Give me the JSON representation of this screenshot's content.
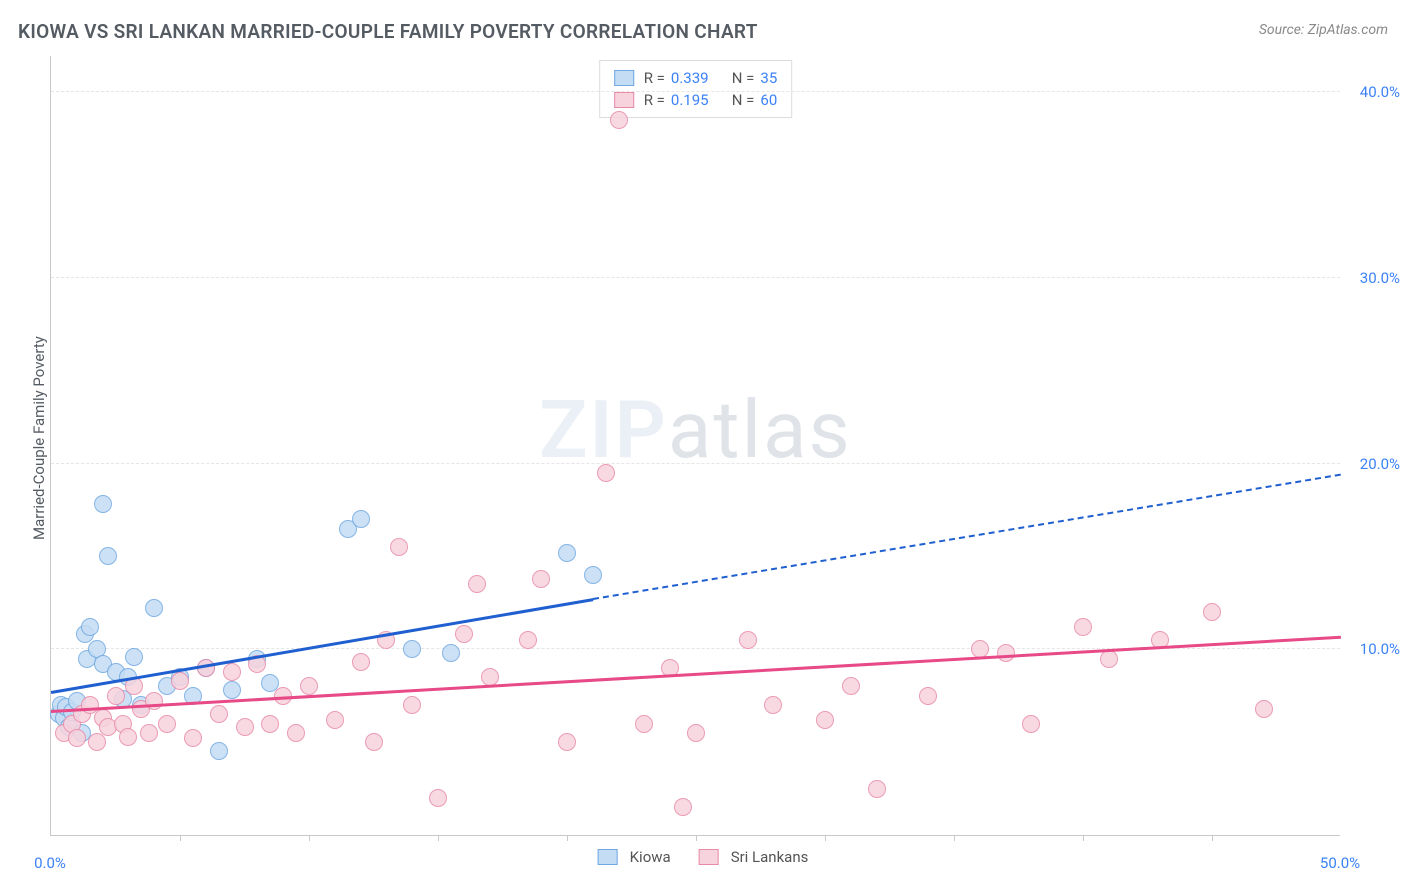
{
  "title": "KIOWA VS SRI LANKAN MARRIED-COUPLE FAMILY POVERTY CORRELATION CHART",
  "source": "Source: ZipAtlas.com",
  "watermark_bold": "ZIP",
  "watermark_thin": "atlas",
  "y_axis_label": "Married-Couple Family Poverty",
  "chart": {
    "type": "scatter",
    "background_color": "#ffffff",
    "grid_color": "#e5e5e5",
    "axis_color": "#c9c9c9",
    "tick_label_color": "#3b82f6",
    "xlim": [
      0,
      50
    ],
    "ylim": [
      0,
      42
    ],
    "x_ticks": [
      0,
      50
    ],
    "x_tick_labels": [
      "0.0%",
      "50.0%"
    ],
    "x_minor_ticks": [
      5,
      10,
      15,
      20,
      25,
      30,
      35,
      40,
      45
    ],
    "y_ticks": [
      10,
      20,
      30,
      40
    ],
    "y_tick_labels": [
      "10.0%",
      "20.0%",
      "30.0%",
      "40.0%"
    ],
    "marker_radius": 9,
    "marker_opacity": 0.85
  },
  "series": [
    {
      "name": "Kiowa",
      "label": "Kiowa",
      "color_fill": "#c4dcf4",
      "color_stroke": "#6fa8e2",
      "trend_color": "#1f5fd0",
      "R": "0.339",
      "N": "35",
      "trend": {
        "x1": 0,
        "y1": 7.8,
        "x2": 21,
        "y2": 12.8,
        "x2_ext": 50,
        "y2_ext": 19.5
      },
      "points": [
        [
          0.3,
          6.5
        ],
        [
          0.4,
          7.0
        ],
        [
          0.5,
          6.3
        ],
        [
          0.6,
          6.9
        ],
        [
          0.7,
          5.8
        ],
        [
          0.8,
          6.6
        ],
        [
          1.0,
          7.2
        ],
        [
          1.2,
          5.5
        ],
        [
          1.3,
          10.8
        ],
        [
          1.4,
          9.5
        ],
        [
          1.5,
          11.2
        ],
        [
          1.8,
          10.0
        ],
        [
          2.0,
          9.2
        ],
        [
          2.0,
          17.8
        ],
        [
          2.2,
          15.0
        ],
        [
          2.5,
          8.8
        ],
        [
          2.8,
          7.3
        ],
        [
          3.0,
          8.5
        ],
        [
          3.2,
          9.6
        ],
        [
          3.5,
          7.0
        ],
        [
          4.0,
          12.2
        ],
        [
          4.5,
          8.0
        ],
        [
          5.0,
          8.5
        ],
        [
          5.5,
          7.5
        ],
        [
          6.0,
          9.0
        ],
        [
          6.5,
          4.5
        ],
        [
          7.0,
          7.8
        ],
        [
          8.0,
          9.5
        ],
        [
          8.5,
          8.2
        ],
        [
          11.5,
          16.5
        ],
        [
          12.0,
          17.0
        ],
        [
          14.0,
          10.0
        ],
        [
          15.5,
          9.8
        ],
        [
          20.0,
          15.2
        ],
        [
          21.0,
          14.0
        ]
      ]
    },
    {
      "name": "Sri Lankans",
      "label": "Sri Lankans",
      "color_fill": "#f7d3de",
      "color_stroke": "#e88aa8",
      "trend_color": "#e74a87",
      "R": "0.195",
      "N": "60",
      "trend": {
        "x1": 0,
        "y1": 6.8,
        "x2": 50,
        "y2": 10.8
      },
      "points": [
        [
          0.5,
          5.5
        ],
        [
          0.8,
          6.0
        ],
        [
          1.0,
          5.2
        ],
        [
          1.2,
          6.5
        ],
        [
          1.5,
          7.0
        ],
        [
          1.8,
          5.0
        ],
        [
          2.0,
          6.3
        ],
        [
          2.2,
          5.8
        ],
        [
          2.5,
          7.5
        ],
        [
          2.8,
          6.0
        ],
        [
          3.0,
          5.3
        ],
        [
          3.2,
          8.0
        ],
        [
          3.5,
          6.8
        ],
        [
          3.8,
          5.5
        ],
        [
          4.0,
          7.2
        ],
        [
          4.5,
          6.0
        ],
        [
          5.0,
          8.3
        ],
        [
          5.5,
          5.2
        ],
        [
          6.0,
          9.0
        ],
        [
          6.5,
          6.5
        ],
        [
          7.0,
          8.8
        ],
        [
          7.5,
          5.8
        ],
        [
          8.0,
          9.2
        ],
        [
          8.5,
          6.0
        ],
        [
          9.0,
          7.5
        ],
        [
          9.5,
          5.5
        ],
        [
          10.0,
          8.0
        ],
        [
          11.0,
          6.2
        ],
        [
          12.0,
          9.3
        ],
        [
          12.5,
          5.0
        ],
        [
          13.0,
          10.5
        ],
        [
          13.5,
          15.5
        ],
        [
          14.0,
          7.0
        ],
        [
          15.0,
          2.0
        ],
        [
          16.0,
          10.8
        ],
        [
          16.5,
          13.5
        ],
        [
          17.0,
          8.5
        ],
        [
          18.5,
          10.5
        ],
        [
          19.0,
          13.8
        ],
        [
          20.0,
          5.0
        ],
        [
          21.5,
          19.5
        ],
        [
          22.0,
          38.5
        ],
        [
          23.0,
          6.0
        ],
        [
          24.0,
          9.0
        ],
        [
          24.5,
          1.5
        ],
        [
          25.0,
          5.5
        ],
        [
          27.0,
          10.5
        ],
        [
          28.0,
          7.0
        ],
        [
          30.0,
          6.2
        ],
        [
          31.0,
          8.0
        ],
        [
          32.0,
          2.5
        ],
        [
          34.0,
          7.5
        ],
        [
          36.0,
          10.0
        ],
        [
          37.0,
          9.8
        ],
        [
          38.0,
          6.0
        ],
        [
          40.0,
          11.2
        ],
        [
          41.0,
          9.5
        ],
        [
          43.0,
          10.5
        ],
        [
          45.0,
          12.0
        ],
        [
          47.0,
          6.8
        ]
      ]
    }
  ],
  "legend_top": {
    "R_label": "R =",
    "N_label": "N ="
  },
  "legend_bottom": {
    "items": [
      "Kiowa",
      "Sri Lankans"
    ]
  }
}
